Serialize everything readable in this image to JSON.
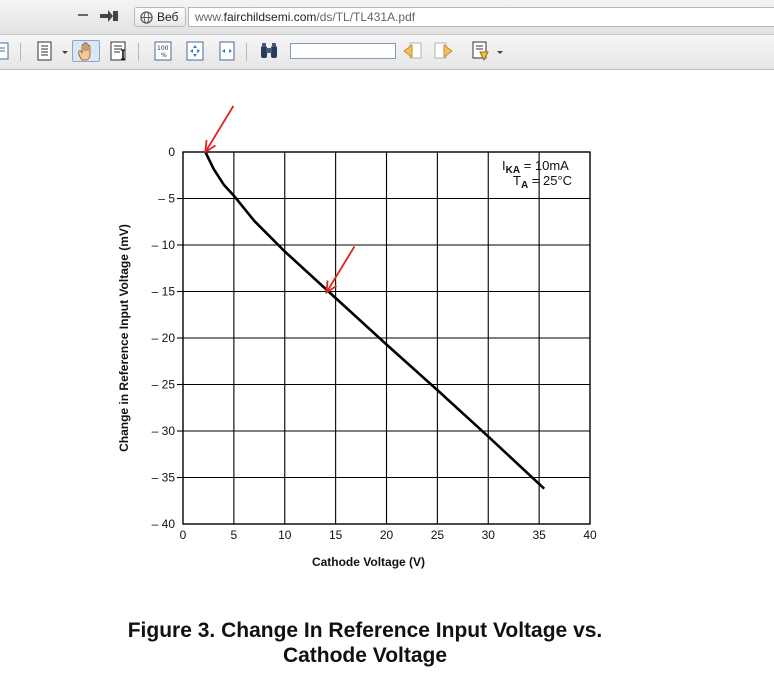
{
  "browser": {
    "web_button_label": "Веб",
    "url_prefix": "www.",
    "url_domain": "fairchildsemi.com",
    "url_path": "/ds/TL/TL431A.pdf"
  },
  "toolbar": {
    "icons": [
      "page-icon",
      "page-layout-icon",
      "hand-tool-icon",
      "text-select-icon",
      "zoom-percent-icon",
      "fit-page-icon",
      "fit-width-icon",
      "binoculars-icon",
      "find-prev-icon",
      "find-next-icon",
      "highlight-icon"
    ],
    "find_value": ""
  },
  "colors": {
    "curve": "#000000",
    "arrow": "#e0221e",
    "grid": "#000000"
  },
  "chart_data": {
    "type": "line",
    "xlabel": "Cathode Voltage (V)",
    "ylabel": "Change in Reference Input Voltage (mV)",
    "xlim": [
      0,
      40
    ],
    "ylim": [
      -40,
      0
    ],
    "x_ticks": [
      "0",
      "5",
      "10",
      "15",
      "20",
      "25",
      "30",
      "35",
      "40"
    ],
    "y_ticks": [
      "0",
      "– 5",
      "– 10",
      "– 15",
      "– 20",
      "– 25",
      "– 30",
      "– 35",
      "– 40"
    ],
    "grid": true,
    "annotations": {
      "line1_main": "I",
      "line1_sub": "KA",
      "line1_rest": " = 10mA",
      "line2_main": "T",
      "line2_sub": "A",
      "line2_rest": " = 25°C"
    },
    "series": [
      {
        "x": [
          2.2,
          3,
          4,
          5,
          7,
          10,
          15,
          20,
          25,
          30,
          35.5
        ],
        "y": [
          0,
          -1.8,
          -3.5,
          -4.7,
          -7.4,
          -10.7,
          -15.7,
          -20.7,
          -25.6,
          -30.6,
          -36.2
        ]
      }
    ],
    "markers": [
      {
        "x": 2.2,
        "y": 0
      },
      {
        "x": 14.1,
        "y": -15.1
      }
    ]
  },
  "caption": {
    "line1": "Figure 3. Change In Reference Input Voltage vs.",
    "line2": "Cathode Voltage"
  }
}
